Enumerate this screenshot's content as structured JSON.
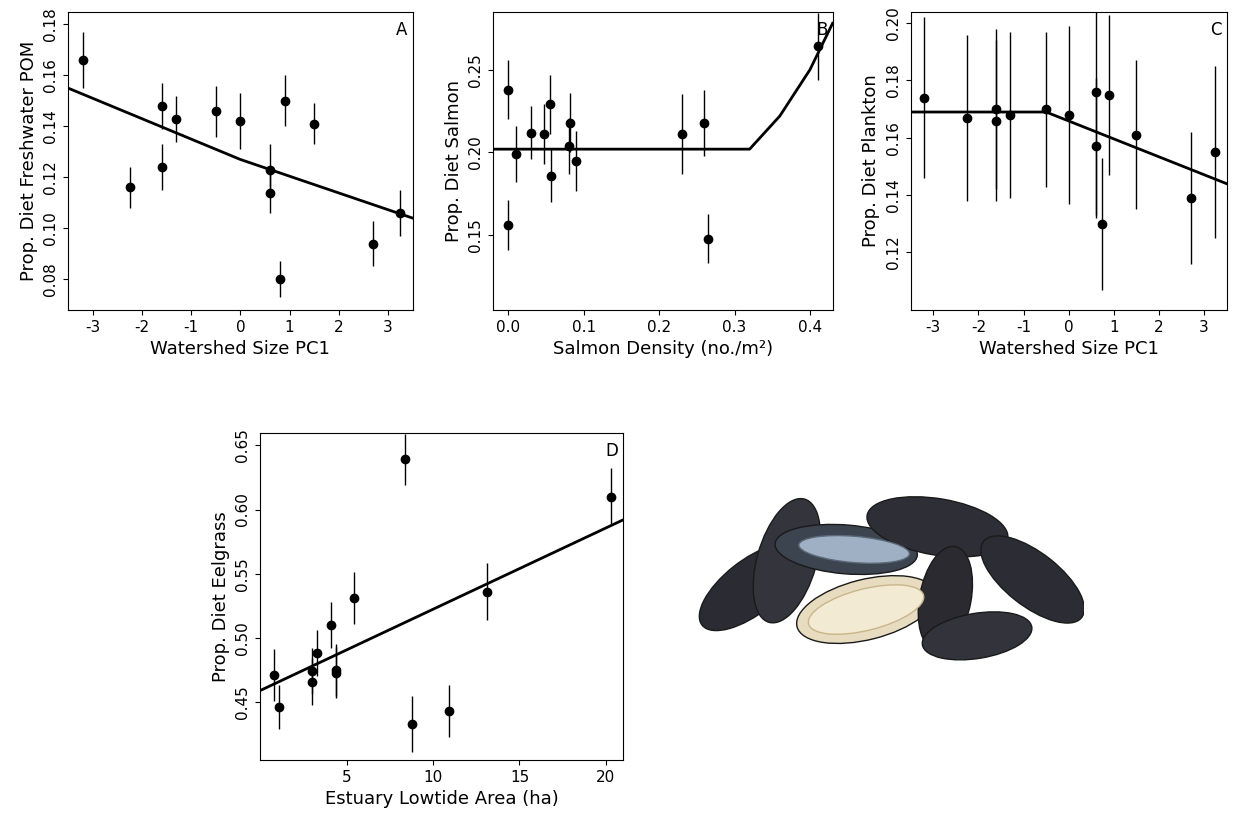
{
  "chart_data": [
    {
      "type": "scatter",
      "title": "A",
      "x_label": "Watershed Size PC1",
      "y_label": "Prop. Diet Freshwater POM",
      "x": [
        -3.2,
        -2.25,
        -1.6,
        -1.6,
        -1.3,
        -0.5,
        0.0,
        0.6,
        0.6,
        0.8,
        0.9,
        1.5,
        2.7,
        3.25
      ],
      "values": [
        0.166,
        0.116,
        0.148,
        0.124,
        0.143,
        0.146,
        0.142,
        0.123,
        0.114,
        0.08,
        0.15,
        0.141,
        0.094,
        0.106
      ],
      "errors": [
        0.011,
        0.008,
        0.009,
        0.009,
        0.009,
        0.01,
        0.011,
        0.01,
        0.008,
        0.007,
        0.01,
        0.008,
        0.009,
        0.009
      ],
      "fit_x": [
        -3.5,
        0.0,
        3.5
      ],
      "fit_values": [
        0.155,
        0.127,
        0.104
      ],
      "xlim": [
        -3.5,
        3.5
      ],
      "xticks": [
        -3,
        -2,
        -1,
        0,
        1,
        2,
        3
      ],
      "ylim": [
        0.068,
        0.185
      ],
      "yticks": [
        {
          "value": 0.08,
          "label": "0.08"
        },
        {
          "value": 0.1,
          "label": "0.10"
        },
        {
          "value": 0.12,
          "label": "0.12"
        },
        {
          "value": 0.14,
          "label": "0.14"
        },
        {
          "value": 0.16,
          "label": "0.16"
        },
        {
          "value": 0.18,
          "label": "0.18"
        }
      ],
      "color": "#000000",
      "marker": "o",
      "grid": false
    },
    {
      "type": "scatter",
      "title": "B",
      "x_label": "Salmon Density (no./m²)",
      "y_label": "Prop. Diet Salmon",
      "x": [
        0.0,
        0.0,
        0.01,
        0.03,
        0.047,
        0.055,
        0.057,
        0.08,
        0.082,
        0.09,
        0.23,
        0.26,
        0.265,
        0.41
      ],
      "values": [
        0.238,
        0.156,
        0.199,
        0.212,
        0.211,
        0.229,
        0.186,
        0.204,
        0.218,
        0.195,
        0.211,
        0.218,
        0.148,
        0.264
      ],
      "errors": [
        0.018,
        0.015,
        0.017,
        0.016,
        0.018,
        0.018,
        0.016,
        0.017,
        0.018,
        0.018,
        0.024,
        0.02,
        0.015,
        0.02
      ],
      "fit_x": [
        -0.02,
        0.32,
        0.36,
        0.4,
        0.43
      ],
      "fit_values": [
        0.202,
        0.202,
        0.222,
        0.25,
        0.278
      ],
      "xlim": [
        -0.02,
        0.43
      ],
      "xticks": [
        {
          "value": 0.0,
          "label": "0.0"
        },
        0.1,
        0.2,
        0.3,
        0.4
      ],
      "ylim": [
        0.105,
        0.285
      ],
      "yticks": [
        0.15,
        {
          "value": 0.2,
          "label": "0.20"
        },
        0.25
      ],
      "color": "#000000",
      "marker": "o",
      "grid": false
    },
    {
      "type": "scatter",
      "title": "C",
      "x_label": "Watershed Size PC1",
      "y_label": "Prop. Diet Plankton",
      "x": [
        -3.2,
        -2.25,
        -1.6,
        -1.6,
        -1.3,
        -0.5,
        0.0,
        0.6,
        0.6,
        0.75,
        0.9,
        1.5,
        2.7,
        3.25
      ],
      "values": [
        0.174,
        0.167,
        0.166,
        0.17,
        0.168,
        0.17,
        0.168,
        0.176,
        0.157,
        0.13,
        0.175,
        0.161,
        0.139,
        0.155
      ],
      "errors": [
        0.028,
        0.029,
        0.028,
        0.028,
        0.029,
        0.027,
        0.031,
        0.044,
        0.024,
        0.023,
        0.028,
        0.026,
        0.023,
        0.03
      ],
      "fit_x": [
        -3.5,
        -0.5,
        3.5
      ],
      "fit_values": [
        0.169,
        0.169,
        0.144
      ],
      "xlim": [
        -3.5,
        3.5
      ],
      "xticks": [
        -3,
        -2,
        -1,
        0,
        1,
        2,
        3
      ],
      "ylim": [
        0.1,
        0.204
      ],
      "yticks": [
        0.12,
        0.14,
        0.16,
        0.18,
        {
          "value": 0.2,
          "label": "0.20"
        }
      ],
      "color": "#000000",
      "marker": "o",
      "grid": false
    },
    {
      "type": "scatter",
      "title": "D",
      "x_label": "Estuary Lowtide Area (ha)",
      "y_label": "Prop. Diet Eelgrass",
      "x": [
        0.8,
        1.1,
        3.0,
        3.0,
        3.3,
        4.1,
        4.4,
        4.4,
        5.4,
        8.4,
        8.8,
        10.9,
        13.1,
        20.3
      ],
      "values": [
        0.471,
        0.446,
        0.474,
        0.466,
        0.488,
        0.51,
        0.475,
        0.473,
        0.531,
        0.639,
        0.433,
        0.443,
        0.536,
        0.61
      ],
      "errors": [
        0.02,
        0.017,
        0.018,
        0.018,
        0.018,
        0.018,
        0.02,
        0.02,
        0.02,
        0.02,
        0.022,
        0.02,
        0.022,
        0.022
      ],
      "fit_x": [
        0.0,
        21.0
      ],
      "fit_values": [
        0.459,
        0.592
      ],
      "xlim": [
        0.0,
        21.0
      ],
      "xticks": [
        5,
        10,
        15,
        20
      ],
      "ylim": [
        0.405,
        0.66
      ],
      "yticks": [
        0.45,
        {
          "value": 0.5,
          "label": "0.50"
        },
        0.55,
        {
          "value": 0.6,
          "label": "0.60"
        },
        0.65
      ],
      "color": "#000000",
      "marker": "o",
      "grid": false
    }
  ]
}
